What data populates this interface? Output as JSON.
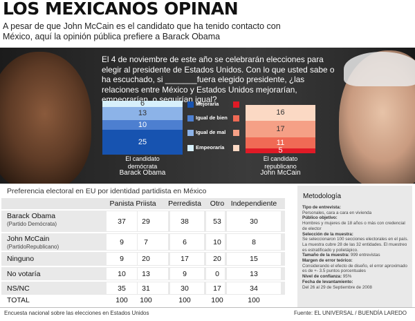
{
  "header": {
    "title": "LOS MEXICANOS OPINAN",
    "subtitle": "A pesar de que John McCain es el candidato que ha tenido contacto con México, aquí la opinión pública prefiere a Barack Obama"
  },
  "question": "El 4 de noviembre de este año se celebrarán elecciones para elegir al presidente de Estados Unidos. Con lo que usted sabe o ha escuchado, si _______fuera elegido presidente, ¿las relaciones entre México y Estados Unidos mejorarían, empeorarían, o seguirían igual?",
  "chart_data": {
    "type": "bar",
    "stacked": true,
    "categories": [
      "Mejoraría",
      "Igual de bien",
      "Igual de mal",
      "Empeoraría"
    ],
    "series": [
      {
        "name": "Barack Obama",
        "party_label": "El candidato demócrata",
        "values": [
          25,
          10,
          13,
          6
        ]
      },
      {
        "name": "John McCain",
        "party_label": "El candidato republicano",
        "values": [
          5,
          11,
          17,
          16
        ]
      }
    ],
    "colors": {
      "obama": [
        "#1753b0",
        "#4d7fd0",
        "#8cb3e8",
        "#d7f0fb"
      ],
      "mccain": [
        "#e01a26",
        "#f06a55",
        "#f5a086",
        "#fbd9c4"
      ]
    }
  },
  "table": {
    "title": "Preferencia electoral en EU por identidad partidista en México",
    "columns": [
      "Panista",
      "Priista",
      "Perredista",
      "Otro",
      "Independiente"
    ],
    "rows": [
      {
        "label": "Barack Obama",
        "sub": "(Partido Demócrata)",
        "values": [
          "37",
          "29",
          "38",
          "53",
          "30"
        ]
      },
      {
        "label": "John McCain",
        "sub": "(PartidoRepublicano)",
        "values": [
          "9",
          "7",
          "6",
          "10",
          "8"
        ]
      },
      {
        "label": "Ninguno",
        "sub": "",
        "values": [
          "9",
          "20",
          "17",
          "20",
          "15"
        ]
      },
      {
        "label": "No votaría",
        "sub": "",
        "values": [
          "10",
          "13",
          "9",
          "0",
          "13"
        ]
      },
      {
        "label": "NS/NC",
        "sub": "",
        "values": [
          "35",
          "31",
          "30",
          "17",
          "34"
        ]
      },
      {
        "label": "TOTAL",
        "sub": "",
        "values": [
          "100",
          "100",
          "100",
          "100",
          "100"
        ]
      }
    ]
  },
  "methodology": {
    "title": "Metodología",
    "items": [
      {
        "label": "Tipo de entrevista:",
        "text": "Personales, cara a cara en vivienda"
      },
      {
        "label": "Público objetivo:",
        "text": "Hombres y mujeres de 18 años o más con credencial de elector"
      },
      {
        "label": "Selección de la muestra:",
        "text": "Se seleccionaron 100 secciones electorales en el país. La muestra cubre 28 de las 32 entidades. El muestreo es estratificado y polietápico."
      },
      {
        "label": "Tamaño de la muestra:",
        "text": "999 entrevistas"
      },
      {
        "label": "Margen de error teórico:",
        "text": "Considerando el efecto de diseño, el error aproximado es de +- 3.5 puntos porcentuales"
      },
      {
        "label": "Nivel de confianza:",
        "text": "95%"
      },
      {
        "label": "Fecha de levantamiento:",
        "text": "Del 26 al 29 de Septiembre de 2008"
      }
    ]
  },
  "footer": {
    "left": "Encuesta nacional sobre las elecciones en Estados Unidos",
    "right": "Fuente: EL UNIVERSAL / BUENDÍA LAREDO"
  }
}
